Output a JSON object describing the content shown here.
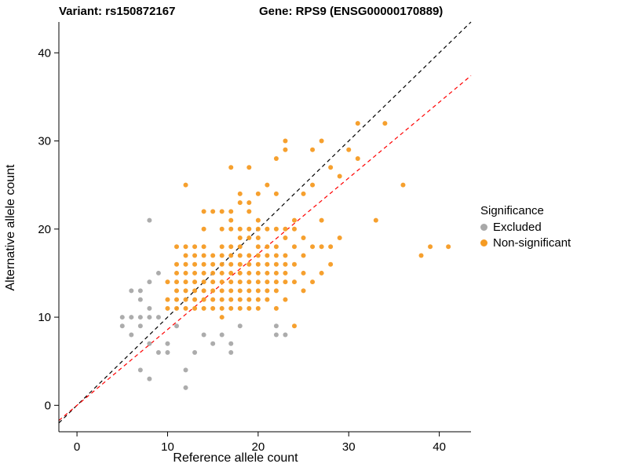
{
  "header": {
    "variant_title": "Variant: rs150872167",
    "gene_title": "Gene: RPS9 (ENSG00000170889)"
  },
  "legend": {
    "title": "Significance",
    "entries": [
      {
        "label": "Excluded",
        "color": "#a8a8a8"
      },
      {
        "label": "Non-significant",
        "color": "#f59b23"
      }
    ]
  },
  "chart_data": {
    "type": "scatter",
    "title": "Variant: rs150872167 / Gene: RPS9 (ENSG00000170889)",
    "xlabel": "Reference allele count",
    "ylabel": "Alternative allele count",
    "xlim": [
      -2,
      43.5
    ],
    "ylim": [
      -3,
      43.5
    ],
    "xticks": [
      0,
      10,
      20,
      30,
      40
    ],
    "yticks": [
      0,
      10,
      20,
      30,
      40
    ],
    "grid": false,
    "legend_position": "right",
    "lines": [
      {
        "name": "identity-line",
        "slope": 1,
        "intercept": 0,
        "color": "#000000",
        "style": "dashed"
      },
      {
        "name": "fit-line",
        "slope": 0.86,
        "intercept": 0,
        "color": "#ff0000",
        "style": "dashed"
      }
    ],
    "series": [
      {
        "name": "excluded",
        "label": "Excluded",
        "color": "#a8a8a8",
        "points": [
          [
            5,
            10
          ],
          [
            5,
            9
          ],
          [
            6,
            8
          ],
          [
            6,
            10
          ],
          [
            6,
            13
          ],
          [
            7,
            4
          ],
          [
            7,
            9
          ],
          [
            7,
            10
          ],
          [
            7,
            12
          ],
          [
            7,
            13
          ],
          [
            8,
            3
          ],
          [
            8,
            7
          ],
          [
            8,
            10
          ],
          [
            8,
            11
          ],
          [
            8,
            14
          ],
          [
            8,
            21
          ],
          [
            9,
            6
          ],
          [
            9,
            10
          ],
          [
            9,
            15
          ],
          [
            10,
            6
          ],
          [
            10,
            7
          ],
          [
            11,
            9
          ],
          [
            12,
            2
          ],
          [
            12,
            4
          ],
          [
            13,
            6
          ],
          [
            14,
            8
          ],
          [
            15,
            7
          ],
          [
            16,
            8
          ],
          [
            17,
            6
          ],
          [
            17,
            7
          ],
          [
            18,
            9
          ],
          [
            22,
            8
          ],
          [
            22,
            9
          ],
          [
            23,
            8
          ]
        ]
      },
      {
        "name": "non-significant",
        "label": "Non-significant",
        "color": "#f59b23",
        "points": [
          [
            10,
            11
          ],
          [
            10,
            12
          ],
          [
            10,
            14
          ],
          [
            11,
            11
          ],
          [
            11,
            12
          ],
          [
            11,
            13
          ],
          [
            11,
            14
          ],
          [
            11,
            15
          ],
          [
            11,
            16
          ],
          [
            11,
            18
          ],
          [
            12,
            11
          ],
          [
            12,
            12
          ],
          [
            12,
            13
          ],
          [
            12,
            14
          ],
          [
            12,
            15
          ],
          [
            12,
            16
          ],
          [
            12,
            17
          ],
          [
            12,
            18
          ],
          [
            12,
            25
          ],
          [
            13,
            11
          ],
          [
            13,
            12
          ],
          [
            13,
            13
          ],
          [
            13,
            14
          ],
          [
            13,
            15
          ],
          [
            13,
            16
          ],
          [
            13,
            17
          ],
          [
            13,
            18
          ],
          [
            14,
            11
          ],
          [
            14,
            12
          ],
          [
            14,
            13
          ],
          [
            14,
            14
          ],
          [
            14,
            15
          ],
          [
            14,
            16
          ],
          [
            14,
            17
          ],
          [
            14,
            18
          ],
          [
            14,
            20
          ],
          [
            14,
            22
          ],
          [
            15,
            11
          ],
          [
            15,
            12
          ],
          [
            15,
            13
          ],
          [
            15,
            14
          ],
          [
            15,
            15
          ],
          [
            15,
            16
          ],
          [
            15,
            17
          ],
          [
            15,
            22
          ],
          [
            16,
            10
          ],
          [
            16,
            11
          ],
          [
            16,
            12
          ],
          [
            16,
            13
          ],
          [
            16,
            14
          ],
          [
            16,
            15
          ],
          [
            16,
            16
          ],
          [
            16,
            17
          ],
          [
            16,
            18
          ],
          [
            16,
            20
          ],
          [
            16,
            22
          ],
          [
            17,
            11
          ],
          [
            17,
            12
          ],
          [
            17,
            13
          ],
          [
            17,
            14
          ],
          [
            17,
            15
          ],
          [
            17,
            16
          ],
          [
            17,
            17
          ],
          [
            17,
            18
          ],
          [
            17,
            20
          ],
          [
            17,
            21
          ],
          [
            17,
            22
          ],
          [
            17,
            27
          ],
          [
            18,
            11
          ],
          [
            18,
            12
          ],
          [
            18,
            13
          ],
          [
            18,
            14
          ],
          [
            18,
            15
          ],
          [
            18,
            16
          ],
          [
            18,
            17
          ],
          [
            18,
            18
          ],
          [
            18,
            19
          ],
          [
            18,
            20
          ],
          [
            18,
            23
          ],
          [
            18,
            24
          ],
          [
            19,
            11
          ],
          [
            19,
            12
          ],
          [
            19,
            13
          ],
          [
            19,
            14
          ],
          [
            19,
            15
          ],
          [
            19,
            16
          ],
          [
            19,
            17
          ],
          [
            19,
            19
          ],
          [
            19,
            20
          ],
          [
            19,
            22
          ],
          [
            19,
            23
          ],
          [
            19,
            27
          ],
          [
            20,
            11
          ],
          [
            20,
            12
          ],
          [
            20,
            13
          ],
          [
            20,
            14
          ],
          [
            20,
            15
          ],
          [
            20,
            16
          ],
          [
            20,
            17
          ],
          [
            20,
            18
          ],
          [
            20,
            19
          ],
          [
            20,
            20
          ],
          [
            20,
            21
          ],
          [
            20,
            24
          ],
          [
            21,
            12
          ],
          [
            21,
            13
          ],
          [
            21,
            14
          ],
          [
            21,
            15
          ],
          [
            21,
            16
          ],
          [
            21,
            17
          ],
          [
            21,
            18
          ],
          [
            21,
            20
          ],
          [
            21,
            25
          ],
          [
            22,
            11
          ],
          [
            22,
            13
          ],
          [
            22,
            14
          ],
          [
            22,
            15
          ],
          [
            22,
            16
          ],
          [
            22,
            17
          ],
          [
            22,
            18
          ],
          [
            22,
            20
          ],
          [
            22,
            24
          ],
          [
            22,
            28
          ],
          [
            23,
            12
          ],
          [
            23,
            14
          ],
          [
            23,
            15
          ],
          [
            23,
            16
          ],
          [
            23,
            17
          ],
          [
            23,
            19
          ],
          [
            23,
            20
          ],
          [
            23,
            29
          ],
          [
            23,
            30
          ],
          [
            24,
            9
          ],
          [
            24,
            14
          ],
          [
            24,
            16
          ],
          [
            24,
            18
          ],
          [
            24,
            20
          ],
          [
            24,
            21
          ],
          [
            25,
            13
          ],
          [
            25,
            15
          ],
          [
            25,
            17
          ],
          [
            25,
            19
          ],
          [
            25,
            24
          ],
          [
            26,
            14
          ],
          [
            26,
            18
          ],
          [
            26,
            25
          ],
          [
            26,
            29
          ],
          [
            27,
            15
          ],
          [
            27,
            18
          ],
          [
            27,
            21
          ],
          [
            27,
            30
          ],
          [
            28,
            16
          ],
          [
            28,
            18
          ],
          [
            28,
            27
          ],
          [
            29,
            19
          ],
          [
            29,
            26
          ],
          [
            30,
            29
          ],
          [
            31,
            28
          ],
          [
            31,
            32
          ],
          [
            33,
            21
          ],
          [
            34,
            32
          ],
          [
            36,
            25
          ],
          [
            38,
            17
          ],
          [
            39,
            18
          ],
          [
            41,
            18
          ]
        ]
      }
    ]
  }
}
